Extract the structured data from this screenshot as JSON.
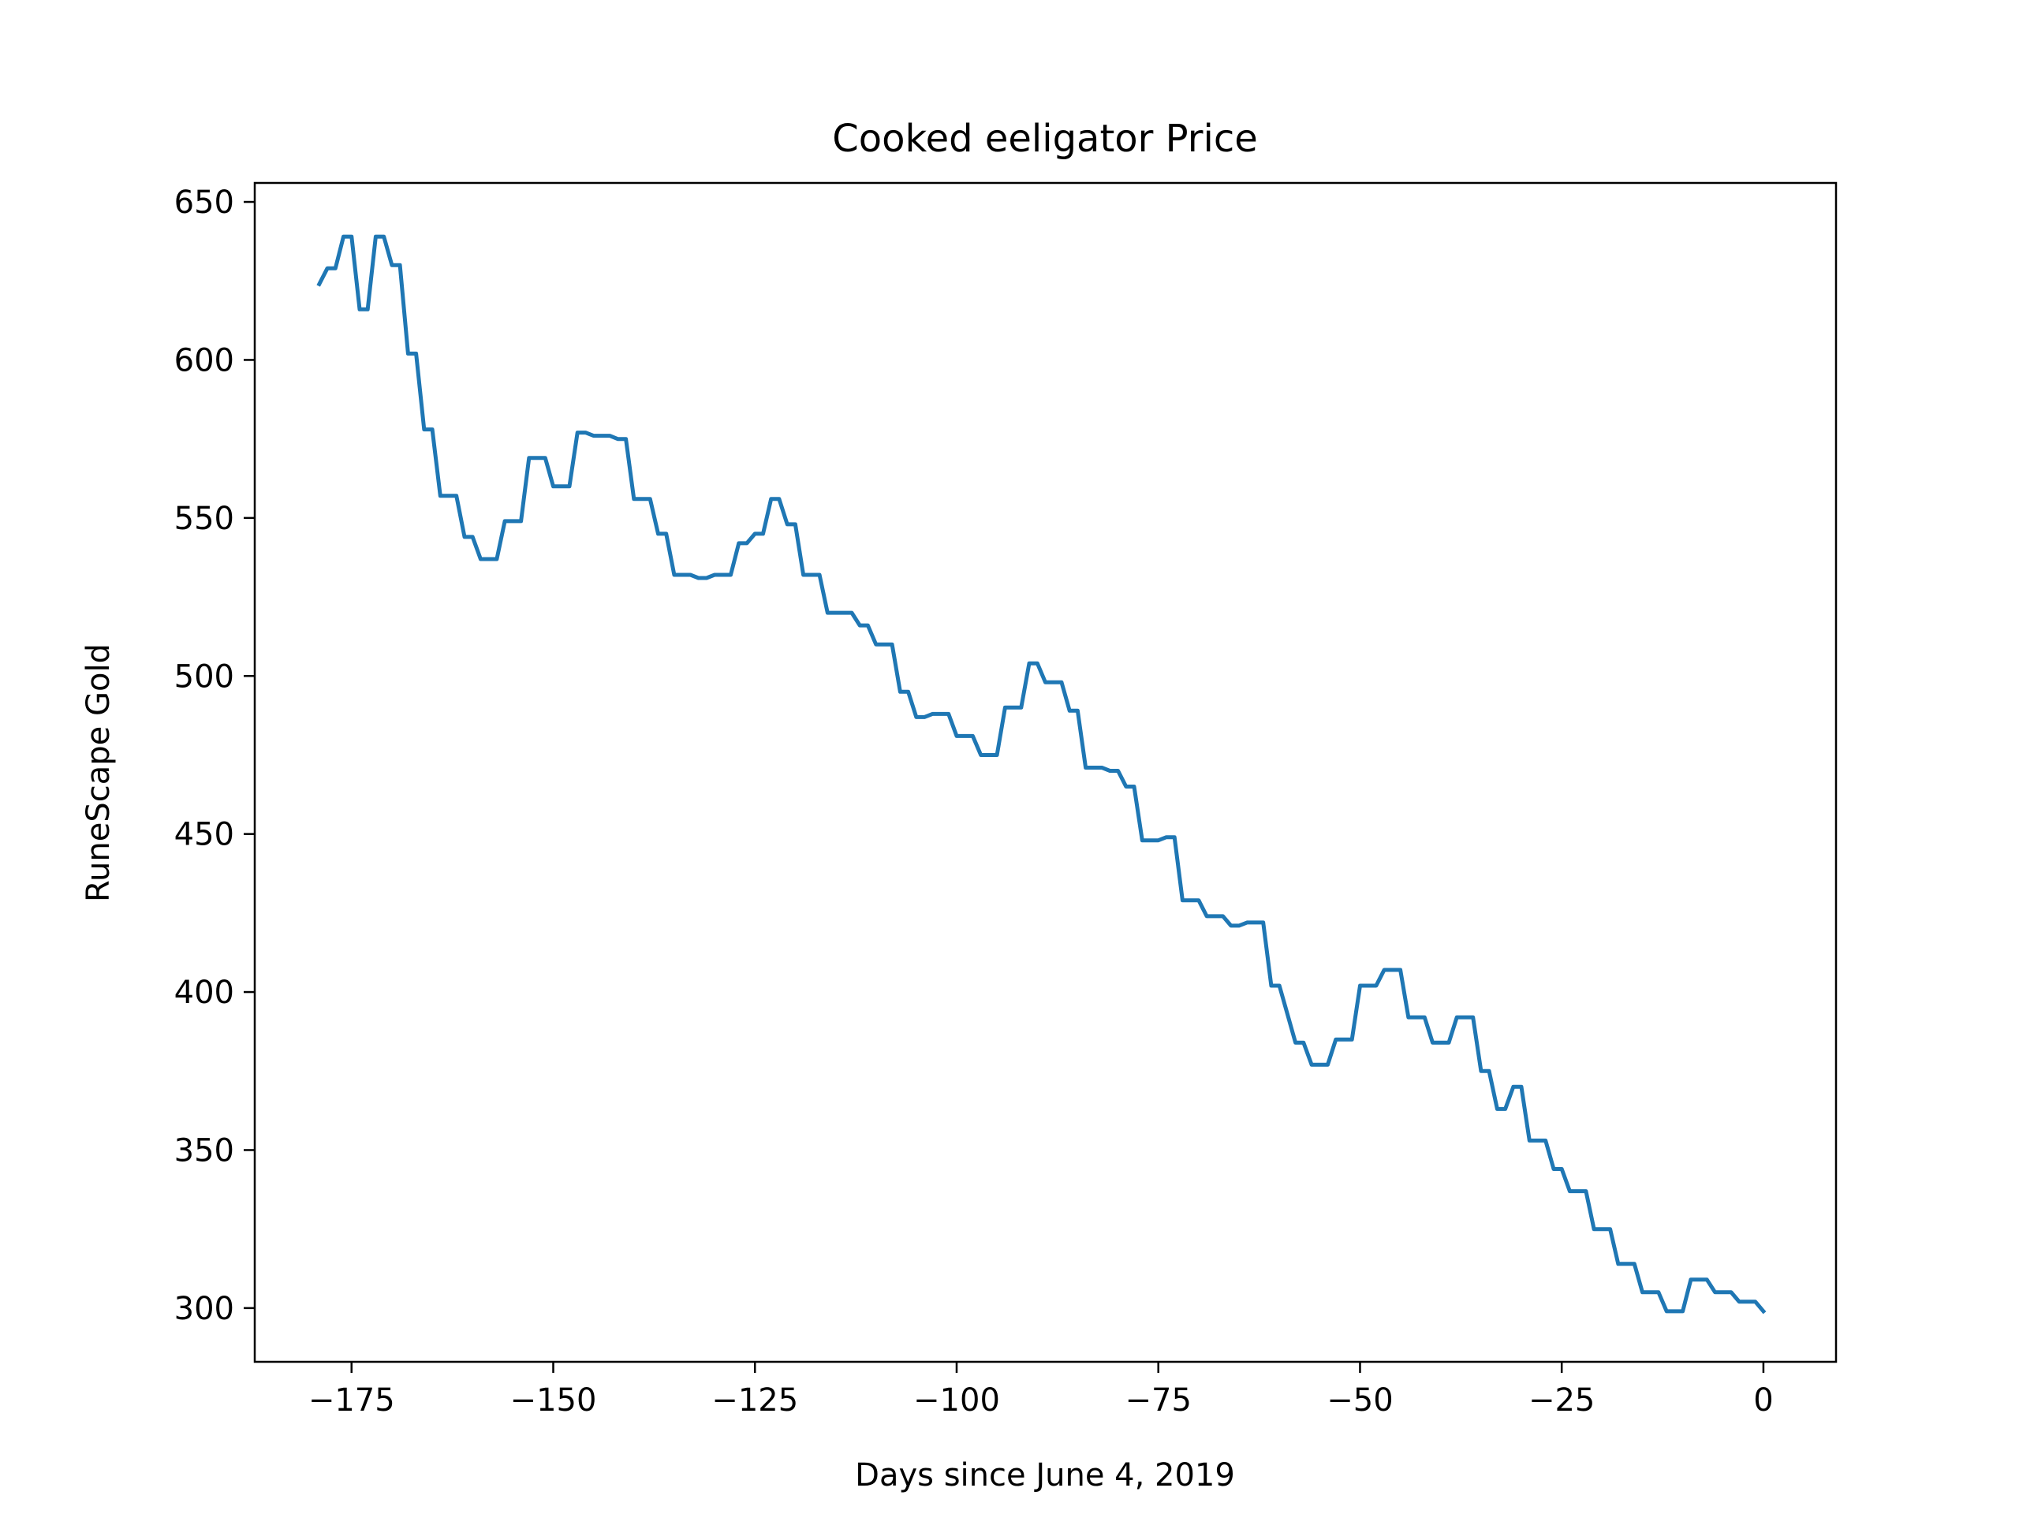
{
  "chart_data": {
    "type": "line",
    "title": "Cooked eeligator Price",
    "xlabel": "Days since June 4, 2019",
    "ylabel": "RuneScape Gold",
    "xlim": [
      -187,
      9
    ],
    "ylim": [
      283,
      656
    ],
    "xticks": [
      -175,
      -150,
      -125,
      -100,
      -75,
      -50,
      -25,
      0
    ],
    "xtick_labels": [
      "−175",
      "−150",
      "−125",
      "−100",
      "−75",
      "−50",
      "−25",
      "0"
    ],
    "yticks": [
      300,
      350,
      400,
      450,
      500,
      550,
      600,
      650
    ],
    "ytick_labels": [
      "300",
      "350",
      "400",
      "450",
      "500",
      "550",
      "600",
      "650"
    ],
    "grid": false,
    "line_color": "#1f77b4",
    "series": [
      {
        "x": [
          -179,
          -178,
          -177,
          -176,
          -175,
          -174,
          -173,
          -172,
          -171,
          -170,
          -169,
          -168,
          -167,
          -166,
          -165,
          -164,
          -163,
          -162,
          -161,
          -160,
          -159,
          -158,
          -157,
          -156,
          -155,
          -154,
          -153,
          -152,
          -151,
          -150,
          -149,
          -148,
          -147,
          -146,
          -145,
          -144,
          -143,
          -142,
          -141,
          -140,
          -139,
          -138,
          -137,
          -136,
          -135,
          -134,
          -133,
          -132,
          -131,
          -130,
          -129,
          -128,
          -127,
          -126,
          -125,
          -124,
          -123,
          -122,
          -121,
          -120,
          -119,
          -118,
          -117,
          -116,
          -115,
          -114,
          -113,
          -112,
          -111,
          -110,
          -109,
          -108,
          -107,
          -106,
          -105,
          -104,
          -103,
          -102,
          -101,
          -100,
          -99,
          -98,
          -97,
          -96,
          -95,
          -94,
          -93,
          -92,
          -91,
          -90,
          -89,
          -88,
          -87,
          -86,
          -85,
          -84,
          -83,
          -82,
          -81,
          -80,
          -79,
          -78,
          -77,
          -76,
          -75,
          -74,
          -73,
          -72,
          -71,
          -70,
          -69,
          -68,
          -67,
          -66,
          -65,
          -64,
          -63,
          -62,
          -61,
          -60,
          -59,
          -58,
          -57,
          -56,
          -55,
          -54,
          -53,
          -52,
          -51,
          -50,
          -49,
          -48,
          -47,
          -46,
          -45,
          -44,
          -43,
          -42,
          -41,
          -40,
          -39,
          -38,
          -37,
          -36,
          -35,
          -34,
          -33,
          -32,
          -31,
          -30,
          -29,
          -28,
          -27,
          -26,
          -25,
          -24,
          -23,
          -22,
          -21,
          -20,
          -19,
          -18,
          -17,
          -16,
          -15,
          -14,
          -13,
          -12,
          -11,
          -10,
          -9,
          -8,
          -7,
          -6,
          -5,
          -4,
          -3,
          -2,
          -1,
          0
        ],
        "values": [
          624,
          629,
          629,
          639,
          639,
          616,
          616,
          639,
          639,
          630,
          630,
          602,
          602,
          578,
          578,
          557,
          557,
          557,
          544,
          544,
          537,
          537,
          537,
          549,
          549,
          549,
          569,
          569,
          569,
          560,
          560,
          560,
          577,
          577,
          576,
          576,
          576,
          575,
          575,
          556,
          556,
          556,
          545,
          545,
          532,
          532,
          532,
          531,
          531,
          532,
          532,
          532,
          542,
          542,
          545,
          545,
          556,
          556,
          548,
          548,
          532,
          532,
          532,
          520,
          520,
          520,
          520,
          516,
          516,
          510,
          510,
          510,
          495,
          495,
          487,
          487,
          488,
          488,
          488,
          481,
          481,
          481,
          475,
          475,
          475,
          490,
          490,
          490,
          504,
          504,
          498,
          498,
          498,
          489,
          489,
          471,
          471,
          471,
          470,
          470,
          465,
          465,
          448,
          448,
          448,
          449,
          449,
          429,
          429,
          429,
          424,
          424,
          424,
          421,
          421,
          422,
          422,
          422,
          402,
          402,
          393,
          384,
          384,
          377,
          377,
          377,
          385,
          385,
          385,
          402,
          402,
          402,
          407,
          407,
          407,
          392,
          392,
          392,
          384,
          384,
          384,
          392,
          392,
          392,
          375,
          375,
          363,
          363,
          370,
          370,
          353,
          353,
          353,
          344,
          344,
          337,
          337,
          337,
          325,
          325,
          325,
          314,
          314,
          314,
          305,
          305,
          305,
          299,
          299,
          299,
          309,
          309,
          309,
          305,
          305,
          305,
          302,
          302,
          302,
          299
        ]
      }
    ]
  }
}
